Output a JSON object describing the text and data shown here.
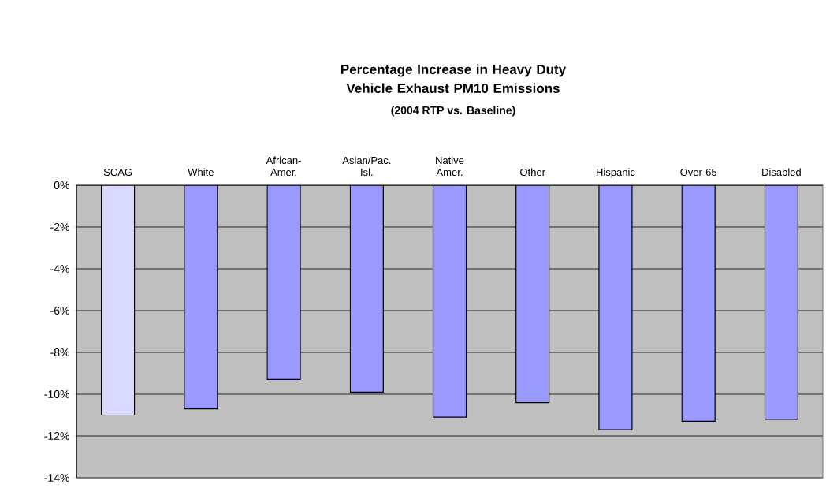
{
  "chart_data": {
    "type": "bar",
    "title": "Percentage Increase in Heavy Duty Vehicle Exhaust PM10 Emissions",
    "subtitle": "(2004 RTP vs. Baseline)",
    "categories": [
      "SCAG",
      "White",
      "African-Amer.",
      "Asian/Pac. Isl.",
      "Native Amer.",
      "Other",
      "Hispanic",
      "Over 65",
      "Disabled"
    ],
    "values": [
      -11.0,
      -10.7,
      -9.3,
      -9.9,
      -11.1,
      -10.4,
      -11.7,
      -11.3,
      -11.2
    ],
    "colors": [
      "#d9d9ff",
      "#9999ff",
      "#9999ff",
      "#9999ff",
      "#9999ff",
      "#9999ff",
      "#9999ff",
      "#9999ff",
      "#9999ff"
    ],
    "ylim": [
      -14,
      0
    ],
    "yticks": [
      {
        "value": -14,
        "label": "-14%"
      },
      {
        "value": -12,
        "label": "-12%"
      },
      {
        "value": -10,
        "label": "-10%"
      },
      {
        "value": -8,
        "label": "-8%"
      },
      {
        "value": -6,
        "label": "-6%"
      },
      {
        "value": -4,
        "label": "-4%"
      },
      {
        "value": -2,
        "label": "-2%"
      },
      {
        "value": 0,
        "label": "0%"
      }
    ],
    "grid": "y"
  }
}
